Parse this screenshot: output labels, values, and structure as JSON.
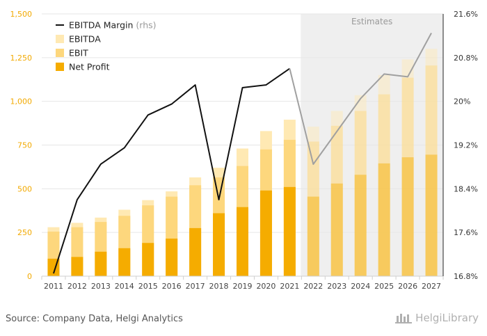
{
  "chart_data": {
    "type": "bar",
    "categories": [
      "2011",
      "2012",
      "2013",
      "2014",
      "2015",
      "2016",
      "2017",
      "2018",
      "2019",
      "2020",
      "2021",
      "2022",
      "2023",
      "2024",
      "2025",
      "2026",
      "2027"
    ],
    "estimates_from_index": 11,
    "estimates_label": "Estimates",
    "series": [
      {
        "name": "EBITDA",
        "type": "bar",
        "color": "#ffe9b3",
        "values": [
          280,
          305,
          335,
          380,
          435,
          485,
          565,
          620,
          730,
          830,
          895,
          855,
          945,
          1035,
          1150,
          1240,
          1300
        ]
      },
      {
        "name": "EBIT",
        "type": "bar",
        "color": "#fdd77d",
        "values": [
          255,
          280,
          310,
          345,
          405,
          455,
          520,
          565,
          630,
          725,
          780,
          770,
          860,
          945,
          1040,
          1135,
          1205
        ]
      },
      {
        "name": "Net Profit",
        "type": "bar",
        "color": "#f5ac00",
        "values": [
          100,
          110,
          140,
          160,
          190,
          215,
          275,
          360,
          395,
          490,
          510,
          455,
          530,
          580,
          645,
          680,
          695
        ]
      },
      {
        "name": "EBITDA Margin",
        "name_suffix": "(rhs)",
        "type": "line",
        "axis": "right",
        "color": "#111111",
        "estimate_color": "#a0a0a0",
        "values": [
          16.85,
          18.2,
          18.85,
          19.15,
          19.75,
          19.95,
          20.3,
          18.2,
          20.25,
          20.3,
          20.6,
          18.85,
          19.45,
          20.05,
          20.5,
          20.45,
          21.25
        ]
      }
    ],
    "y_left": {
      "ylim": [
        0,
        1500
      ],
      "ticks": [
        "0",
        "250",
        "500",
        "750",
        "1,000",
        "1,250",
        "1,500"
      ],
      "tick_values": [
        0,
        250,
        500,
        750,
        1000,
        1250,
        1500
      ],
      "color": "#f2a900"
    },
    "y_right": {
      "ylim": [
        16.8,
        21.6
      ],
      "ticks": [
        "16.8%",
        "17.6%",
        "18.4%",
        "19.2%",
        "20%",
        "20.8%",
        "21.6%"
      ],
      "tick_values": [
        16.8,
        17.6,
        18.4,
        19.2,
        20.0,
        20.8,
        21.6
      ]
    },
    "legend": {
      "placement": "top-left",
      "order": [
        "EBITDA Margin",
        "EBITDA",
        "EBIT",
        "Net Profit"
      ]
    },
    "grid": true
  },
  "footer": {
    "source": "Source: Company Data, Helgi Analytics",
    "brand": "HelgiLibrary"
  }
}
